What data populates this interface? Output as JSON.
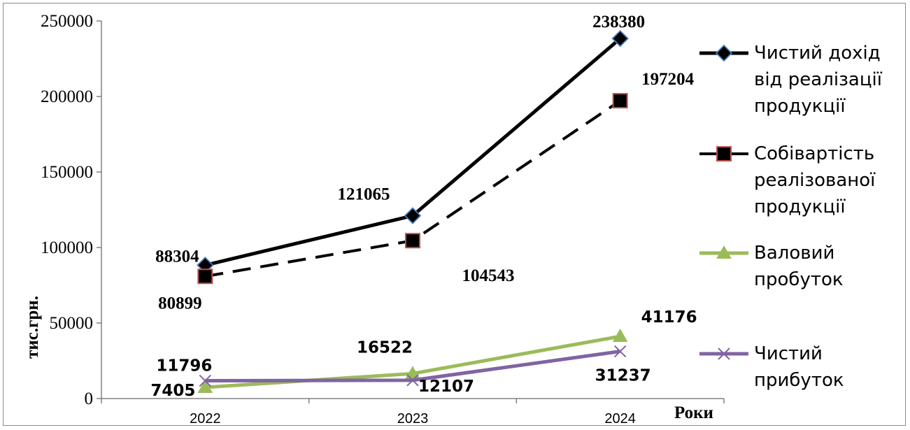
{
  "chart_data": {
    "type": "line",
    "categories": [
      "2022",
      "2023",
      "2024"
    ],
    "xlabel": "Роки",
    "ylabel": "тис.грн.",
    "ylim": [
      0,
      250000
    ],
    "yticks": [
      "0",
      "50000",
      "100000",
      "150000",
      "200000",
      "250000"
    ],
    "grid": false,
    "legend_position": "right",
    "series": [
      {
        "name": "Чистий дохід від реалізації продукції",
        "legend_lines": [
          "Чистий дохід",
          "від реалізації",
          "продукції"
        ],
        "values": [
          88304,
          121065,
          238380
        ],
        "labels": [
          "88304",
          "121065",
          "238380"
        ],
        "color": "#000000",
        "marker": "diamond",
        "marker_fill": "#000000",
        "marker_stroke": "#4a7fc0",
        "dash": "none"
      },
      {
        "name": "Собівартість реалізованої продукції",
        "legend_lines": [
          "Собівартість",
          "реалізованої",
          "продукції"
        ],
        "values": [
          80899,
          104543,
          197204
        ],
        "labels": [
          "80899",
          "104543",
          "197204"
        ],
        "color": "#000000",
        "marker": "square",
        "marker_fill": "#000000",
        "marker_stroke": "#c0504d",
        "dash": "dashed"
      },
      {
        "name": "Валовий пробуток",
        "legend_lines": [
          "Валовий",
          "пробуток"
        ],
        "values": [
          7405,
          16522,
          41176
        ],
        "labels": [
          "7405",
          "16522",
          "41176"
        ],
        "color": "#9bbb59",
        "marker": "triangle",
        "marker_fill": "#9bbb59",
        "marker_stroke": "#9bbb59",
        "dash": "none"
      },
      {
        "name": "Чистий прибуток",
        "legend_lines": [
          "Чистий",
          "прибуток"
        ],
        "values": [
          11796,
          12107,
          31237
        ],
        "labels": [
          "11796",
          "12107",
          "31237"
        ],
        "color": "#8064a2",
        "marker": "x",
        "marker_fill": "none",
        "marker_stroke": "#8064a2",
        "dash": "none"
      }
    ]
  }
}
